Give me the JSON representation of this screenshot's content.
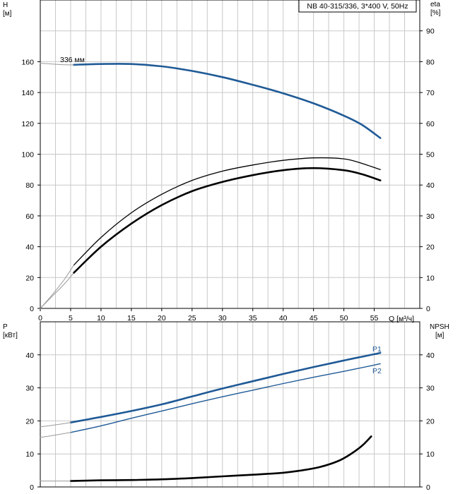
{
  "colors": {
    "grid": "#c8c8c8",
    "axis": "#000000",
    "head": "#1f5a96",
    "power": "#1f5a96",
    "eta": "#000000",
    "npsh": "#000000",
    "thin": "#9a9a9a"
  },
  "chart_data": [
    {
      "id": "top",
      "type": "line",
      "title": "NB 40-315/336, 3*400 V, 50Hz",
      "x_ticks": [
        0,
        5,
        10,
        15,
        20,
        25,
        30,
        35,
        40,
        45,
        50,
        55
      ],
      "xlim": [
        0,
        62.5
      ],
      "x_unit_label": "Q [м³/ч]",
      "y_left": {
        "label_line1": "H",
        "label_line2": "[м]",
        "ticks": [
          0,
          20,
          40,
          60,
          80,
          100,
          120,
          140,
          160
        ],
        "lim": [
          0,
          200
        ]
      },
      "y_right": {
        "label_line1": "eta",
        "label_line2": "[%]",
        "ticks": [
          0,
          10,
          20,
          30,
          40,
          50,
          60,
          70,
          80,
          90
        ],
        "lim": [
          0,
          100
        ]
      },
      "annotation": "336 мм",
      "series": [
        {
          "key": "head",
          "axis": "left",
          "style": "blue-thick",
          "x": [
            5.5,
            10,
            15,
            20,
            25,
            30,
            35,
            40,
            45,
            50,
            53,
            56
          ],
          "y": [
            158,
            158.5,
            158.5,
            157,
            154,
            150,
            145,
            139.5,
            133,
            125,
            119,
            110.5
          ]
        },
        {
          "key": "head-ext",
          "axis": "left",
          "style": "thin",
          "x": [
            0,
            2,
            4,
            5.5
          ],
          "y": [
            159,
            158.5,
            158,
            158
          ]
        },
        {
          "key": "eta-thin",
          "axis": "right",
          "style": "black-thin",
          "x": [
            5.5,
            10,
            15,
            20,
            25,
            30,
            35,
            40,
            45,
            50,
            53,
            56
          ],
          "y": [
            14,
            23,
            31,
            37,
            41.5,
            44.5,
            46.5,
            48,
            48.8,
            48.5,
            47,
            45
          ]
        },
        {
          "key": "eta-thin-ext",
          "axis": "right",
          "style": "thin",
          "x": [
            0,
            2,
            4,
            5.5
          ],
          "y": [
            0,
            4.5,
            9.5,
            14
          ]
        },
        {
          "key": "eta-thick",
          "axis": "right",
          "style": "black-thick",
          "x": [
            5.5,
            10,
            15,
            20,
            25,
            30,
            35,
            40,
            45,
            50,
            53,
            56
          ],
          "y": [
            11.5,
            20,
            27.5,
            33.5,
            38,
            41,
            43.2,
            44.8,
            45.5,
            44.8,
            43.5,
            41.5
          ]
        },
        {
          "key": "eta-thick-ext",
          "axis": "right",
          "style": "thin",
          "x": [
            0,
            2,
            4,
            5.5
          ],
          "y": [
            0,
            4,
            8,
            11.5
          ]
        }
      ]
    },
    {
      "id": "bottom",
      "type": "line",
      "x_ticks": [
        0,
        5,
        10,
        15,
        20,
        25,
        30,
        35,
        40,
        45,
        50,
        55
      ],
      "xlim": [
        0,
        62.5
      ],
      "y_left": {
        "label_line1": "P",
        "label_line2": "[кВт]",
        "ticks": [
          0,
          10,
          20,
          30,
          40
        ],
        "lim": [
          0,
          50
        ]
      },
      "y_right": {
        "label_line1": "NPSH",
        "label_line2": "[м]",
        "ticks": [
          0,
          10,
          20,
          30,
          40
        ],
        "lim": [
          0,
          50
        ]
      },
      "series": [
        {
          "key": "P1",
          "name": "P1",
          "axis": "left",
          "style": "blue-thick",
          "x": [
            5,
            10,
            15,
            20,
            25,
            30,
            35,
            40,
            45,
            50,
            55,
            56
          ],
          "y": [
            19.5,
            21.2,
            23,
            25,
            27.4,
            29.8,
            32,
            34.2,
            36.3,
            38.3,
            40.2,
            40.6
          ]
        },
        {
          "key": "P1-ext",
          "axis": "left",
          "style": "thin",
          "x": [
            0,
            2.5,
            5
          ],
          "y": [
            18.2,
            18.8,
            19.5
          ]
        },
        {
          "key": "P2",
          "name": "P2",
          "axis": "left",
          "style": "blue-thin",
          "x": [
            5,
            10,
            15,
            20,
            25,
            30,
            35,
            40,
            45,
            50,
            55,
            56
          ],
          "y": [
            16.5,
            18.5,
            20.8,
            23,
            25.2,
            27.3,
            29.3,
            31.3,
            33.2,
            35,
            36.9,
            37.3
          ]
        },
        {
          "key": "P2-ext",
          "axis": "left",
          "style": "thin",
          "x": [
            0,
            2.5,
            5
          ],
          "y": [
            15,
            15.7,
            16.5
          ]
        },
        {
          "key": "npsh",
          "axis": "right",
          "style": "black-thick",
          "x": [
            5,
            10,
            15,
            20,
            25,
            30,
            35,
            40,
            43,
            46,
            49,
            51,
            53,
            54.5
          ],
          "y": [
            1.8,
            2,
            2.1,
            2.3,
            2.7,
            3.2,
            3.7,
            4.3,
            5,
            6,
            7.8,
            9.8,
            12.5,
            15.3
          ]
        },
        {
          "key": "npsh-ext",
          "axis": "right",
          "style": "thin",
          "x": [
            0,
            5
          ],
          "y": [
            1.8,
            1.8
          ]
        }
      ]
    }
  ]
}
